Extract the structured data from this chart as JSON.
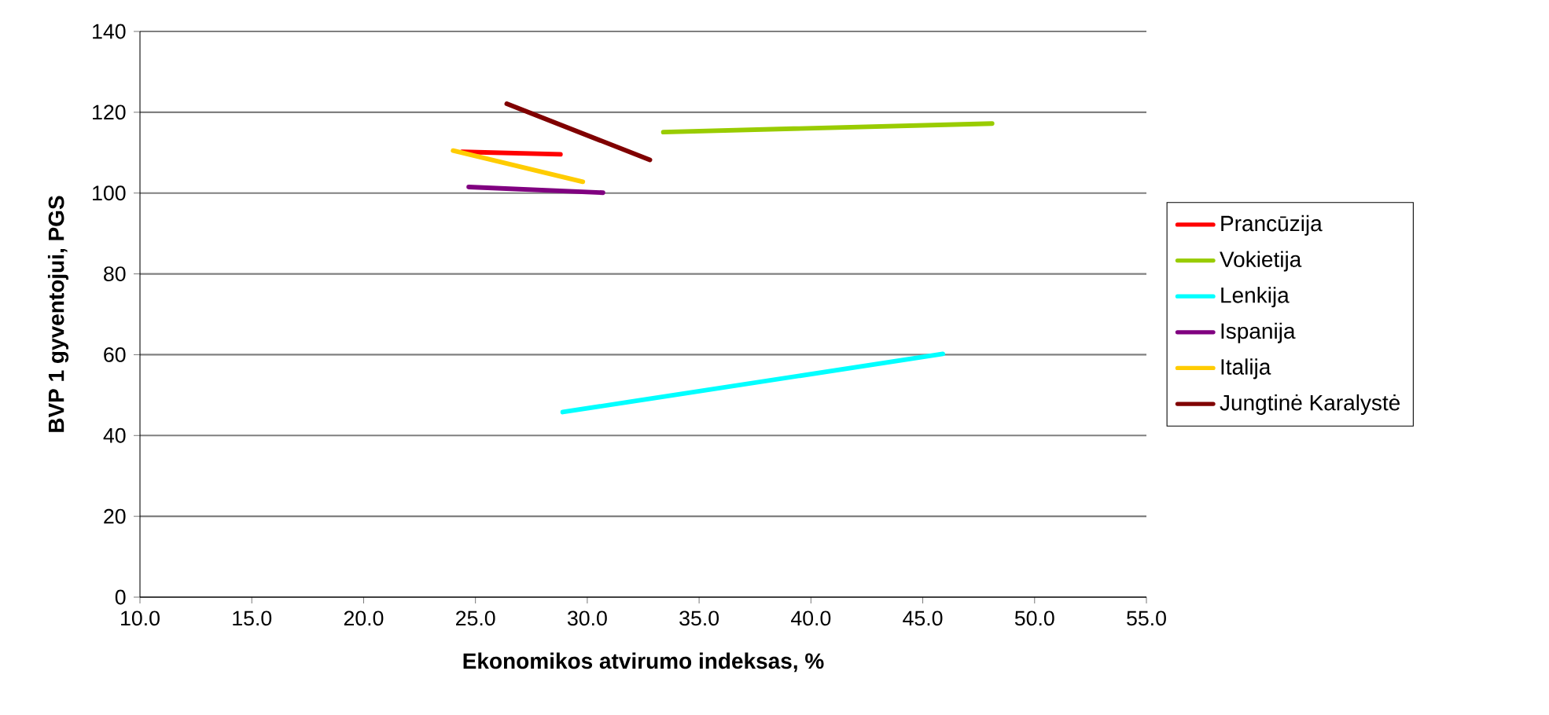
{
  "chart_data": {
    "type": "line",
    "xlabel": "Ekonomikos atvirumo indeksas, %",
    "ylabel": "BVP 1 gyventojui, PGS",
    "xlim": [
      10,
      55
    ],
    "xticks": [
      {
        "value": 10,
        "label": "10.0"
      },
      {
        "value": 15,
        "label": "15.0"
      },
      {
        "value": 20,
        "label": "20.0"
      },
      {
        "value": 25,
        "label": "25.0"
      },
      {
        "value": 30,
        "label": "30.0"
      },
      {
        "value": 35,
        "label": "35.0"
      },
      {
        "value": 40,
        "label": "40.0"
      },
      {
        "value": 45,
        "label": "45.0"
      },
      {
        "value": 50,
        "label": "50.0"
      },
      {
        "value": 55,
        "label": "55.0"
      }
    ],
    "ylim": [
      0,
      140
    ],
    "yticks": [
      0,
      20,
      40,
      60,
      80,
      100,
      120,
      140
    ],
    "grid": "y",
    "legend": "right",
    "line_style": "solid",
    "series": [
      {
        "name": "Prancūzija",
        "color": "#ff0000",
        "x": [
          24.4,
          28.8
        ],
        "values": [
          110.2,
          109.6
        ]
      },
      {
        "name": "Vokietija",
        "color": "#99cc00",
        "x": [
          33.4,
          48.1
        ],
        "values": [
          115.1,
          117.2
        ]
      },
      {
        "name": "Lenkija",
        "color": "#00ffff",
        "x": [
          28.9,
          45.9
        ],
        "values": [
          45.8,
          60.2
        ]
      },
      {
        "name": "Ispanija",
        "color": "#800080",
        "x": [
          24.7,
          30.7
        ],
        "values": [
          101.5,
          100.1
        ]
      },
      {
        "name": "Italija",
        "color": "#ffcc00",
        "x": [
          24.0,
          29.8
        ],
        "values": [
          110.5,
          102.8
        ]
      },
      {
        "name": "Jungtinė Karalystė",
        "color": "#800000",
        "x": [
          26.4,
          32.8
        ],
        "values": [
          122.1,
          108.2
        ]
      }
    ]
  }
}
